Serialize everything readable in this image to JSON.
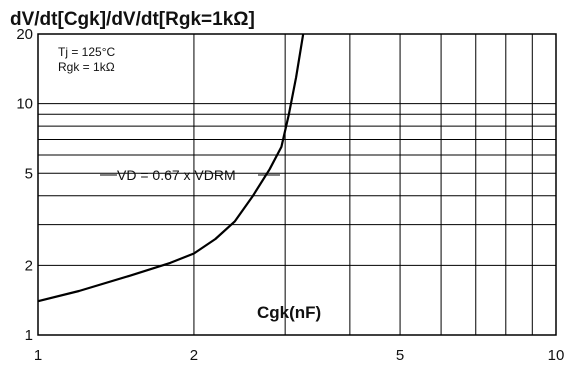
{
  "chart_data": {
    "type": "line",
    "title": "dV/dt[Cgk]/dV/dt[Rgk=1kΩ]",
    "xlabel": "Cgk(nF)",
    "ylabel": "",
    "x_scale": "log",
    "y_scale": "log",
    "xlim": [
      1,
      10
    ],
    "ylim": [
      1,
      20
    ],
    "x_ticks": [
      "1",
      "2",
      "5",
      "10"
    ],
    "y_ticks": [
      "1",
      "2",
      "5",
      "10",
      "20"
    ],
    "grid": true,
    "conditions": [
      "Tj = 125°C",
      "Rgk = 1kΩ"
    ],
    "annotation": "VD = 0.67 x VDRM",
    "series": [
      {
        "x": [
          1.0,
          1.2,
          1.5,
          1.8,
          2.0,
          2.2,
          2.4,
          2.6,
          2.8,
          2.95,
          3.05,
          3.15,
          3.25
        ],
        "y": [
          1.4,
          1.55,
          1.8,
          2.05,
          2.25,
          2.6,
          3.1,
          4.0,
          5.2,
          6.5,
          9.0,
          13.0,
          20.0
        ]
      }
    ]
  }
}
